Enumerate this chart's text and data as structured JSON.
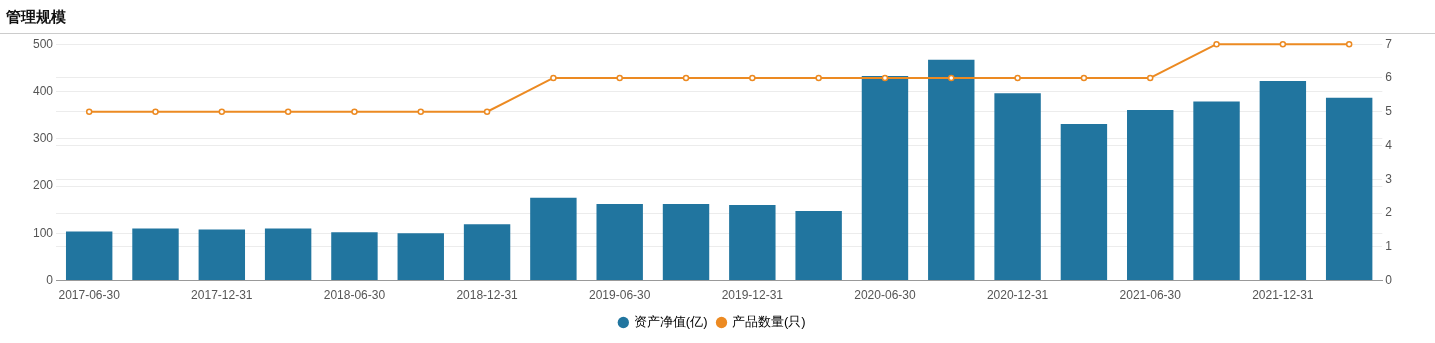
{
  "chart_data": {
    "type": "bar",
    "title": "管理规模",
    "categories": [
      "2017-06-30",
      null,
      "2017-12-31",
      null,
      "2018-06-30",
      null,
      "2018-12-31",
      null,
      "2019-06-30",
      null,
      "2019-12-31",
      null,
      "2020-06-30",
      null,
      "2020-12-31",
      null,
      "2021-06-30",
      null,
      "2021-12-31",
      null
    ],
    "series": [
      {
        "name": "资产净值(亿)",
        "color": "#21759f",
        "values": [
          104,
          110,
          108,
          110,
          102,
          100,
          119,
          175,
          162,
          162,
          160,
          147,
          433,
          467,
          396,
          331,
          361,
          379,
          422,
          387
        ]
      },
      {
        "name": "产品数量(只)",
        "type": "line",
        "axis": "y2",
        "color": "#ec8a22",
        "values": [
          5,
          5,
          5,
          5,
          5,
          5,
          5,
          6,
          6,
          6,
          6,
          6,
          6,
          6,
          6,
          6,
          6,
          7,
          7,
          7
        ]
      }
    ],
    "ylim": [
      0,
      500
    ],
    "yticks": [
      0,
      100,
      200,
      300,
      400,
      500
    ],
    "y2lim": [
      0,
      7
    ],
    "y2ticks": [
      0,
      1,
      2,
      3,
      4,
      5,
      6,
      7
    ],
    "grid": "y",
    "legend": "bottom",
    "marker": "circle",
    "line_style": "solid"
  }
}
